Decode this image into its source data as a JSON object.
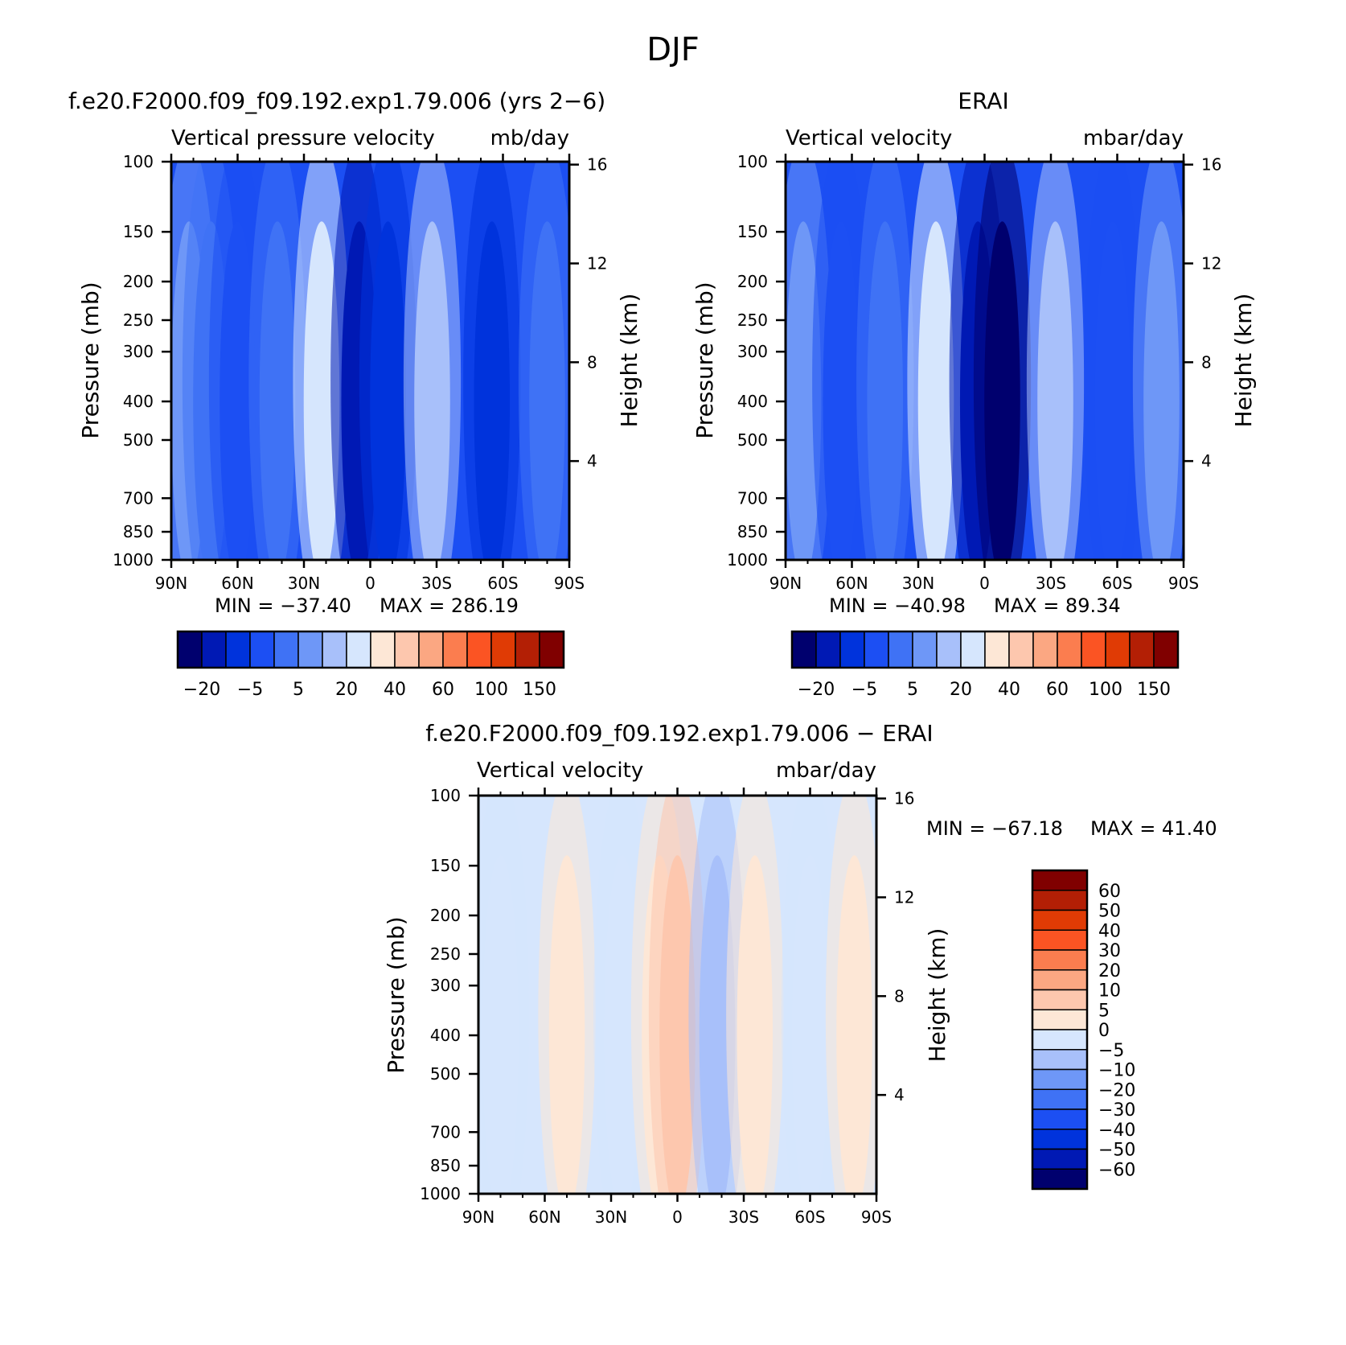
{
  "figure_title": "DJF",
  "colors": {
    "full_fields": [
      "#00006e",
      "#0019b4",
      "#0033dc",
      "#1c4ff3",
      "#3f72f5",
      "#6e97f7",
      "#a8c0fa",
      "#d6e6fd",
      "#fde7d6",
      "#fdc7ae",
      "#fba782",
      "#fb7d4f",
      "#fb5423",
      "#e03b05",
      "#b31f05",
      "#800000"
    ],
    "difference": [
      "#00006e",
      "#0019b4",
      "#0033dc",
      "#1c4ff3",
      "#3f72f5",
      "#6e97f7",
      "#a8c0fa",
      "#d6e6fd",
      "#fde7d6",
      "#fdc7ae",
      "#fba782",
      "#fb7d4f",
      "#fb5423",
      "#e03b05",
      "#b31f05",
      "#800000"
    ]
  },
  "chart_data": [
    {
      "type": "heatmap",
      "case_title": "f.e20.F2000.f09_f09.192.exp1.79.006 (yrs 2−6)",
      "variable": "Vertical pressure velocity",
      "units": "mb/day",
      "ylabel": "Pressure (mb)",
      "ylabel_right": "Height (km)",
      "x_ticks": [
        "90N",
        "60N",
        "30N",
        "0",
        "30S",
        "60S",
        "90S"
      ],
      "y_ticks": [
        "100",
        "150",
        "200",
        "250",
        "300",
        "400",
        "500",
        "700",
        "850",
        "1000"
      ],
      "y_ticks_right": [
        "16",
        "12",
        "8",
        "4"
      ],
      "ylim": [
        1000,
        100
      ],
      "min_label": "MIN  =  −37.40",
      "max_label": "MAX  =  286.19",
      "colorbar_labels": [
        "−20",
        "−5",
        "5",
        "20",
        "40",
        "60",
        "100",
        "150"
      ],
      "bands": [
        {
          "lat": 82,
          "level": 5
        },
        {
          "lat": 72,
          "level": 4
        },
        {
          "lat": 60,
          "level": 3
        },
        {
          "lat": 42,
          "level": 4
        },
        {
          "lat": 22,
          "level": 7
        },
        {
          "lat": 5,
          "level": 1
        },
        {
          "lat": -8,
          "level": 2
        },
        {
          "lat": -28,
          "level": 6
        },
        {
          "lat": -55,
          "level": 2
        },
        {
          "lat": -80,
          "level": 4
        }
      ]
    },
    {
      "type": "heatmap",
      "case_title": "ERAI",
      "variable": "Vertical velocity",
      "units": "mbar/day",
      "ylabel": "Pressure (mb)",
      "ylabel_right": "Height (km)",
      "x_ticks": [
        "90N",
        "60N",
        "30N",
        "0",
        "30S",
        "60S",
        "90S"
      ],
      "y_ticks": [
        "100",
        "150",
        "200",
        "250",
        "300",
        "400",
        "500",
        "700",
        "850",
        "1000"
      ],
      "y_ticks_right": [
        "16",
        "12",
        "8",
        "4"
      ],
      "ylim": [
        1000,
        100
      ],
      "min_label": "MIN  =  −40.98",
      "max_label": "MAX  =   89.34",
      "colorbar_labels": [
        "−20",
        "−5",
        "5",
        "20",
        "40",
        "60",
        "100",
        "150"
      ],
      "bands": [
        {
          "lat": 82,
          "level": 5
        },
        {
          "lat": 65,
          "level": 3
        },
        {
          "lat": 45,
          "level": 4
        },
        {
          "lat": 22,
          "level": 7
        },
        {
          "lat": 3,
          "level": 1
        },
        {
          "lat": -8,
          "level": 0
        },
        {
          "lat": -32,
          "level": 6
        },
        {
          "lat": -58,
          "level": 3
        },
        {
          "lat": -80,
          "level": 5
        }
      ]
    },
    {
      "type": "heatmap",
      "case_title": "f.e20.F2000.f09_f09.192.exp1.79.006 − ERAI",
      "variable": "Vertical velocity",
      "units": "mbar/day",
      "ylabel": "Pressure (mb)",
      "ylabel_right": "Height (km)",
      "x_ticks": [
        "90N",
        "60N",
        "30N",
        "0",
        "30S",
        "60S",
        "90S"
      ],
      "y_ticks": [
        "100",
        "150",
        "200",
        "250",
        "300",
        "400",
        "500",
        "700",
        "850",
        "1000"
      ],
      "y_ticks_right": [
        "16",
        "12",
        "8",
        "4"
      ],
      "ylim": [
        1000,
        100
      ],
      "min_label": "MIN  =  −67.18",
      "max_label": "MAX  =   41.40",
      "colorbar_labels": [
        "60",
        "50",
        "40",
        "30",
        "20",
        "10",
        "5",
        "0",
        "−5",
        "−10",
        "−20",
        "−30",
        "−40",
        "−50",
        "−60"
      ],
      "bands": [
        {
          "lat": 80,
          "level": 7
        },
        {
          "lat": 50,
          "level": 8
        },
        {
          "lat": 25,
          "level": 7
        },
        {
          "lat": 8,
          "level": 8
        },
        {
          "lat": 0,
          "level": 9
        },
        {
          "lat": -18,
          "level": 6
        },
        {
          "lat": -35,
          "level": 8
        },
        {
          "lat": -60,
          "level": 7
        },
        {
          "lat": -80,
          "level": 8
        }
      ]
    }
  ]
}
